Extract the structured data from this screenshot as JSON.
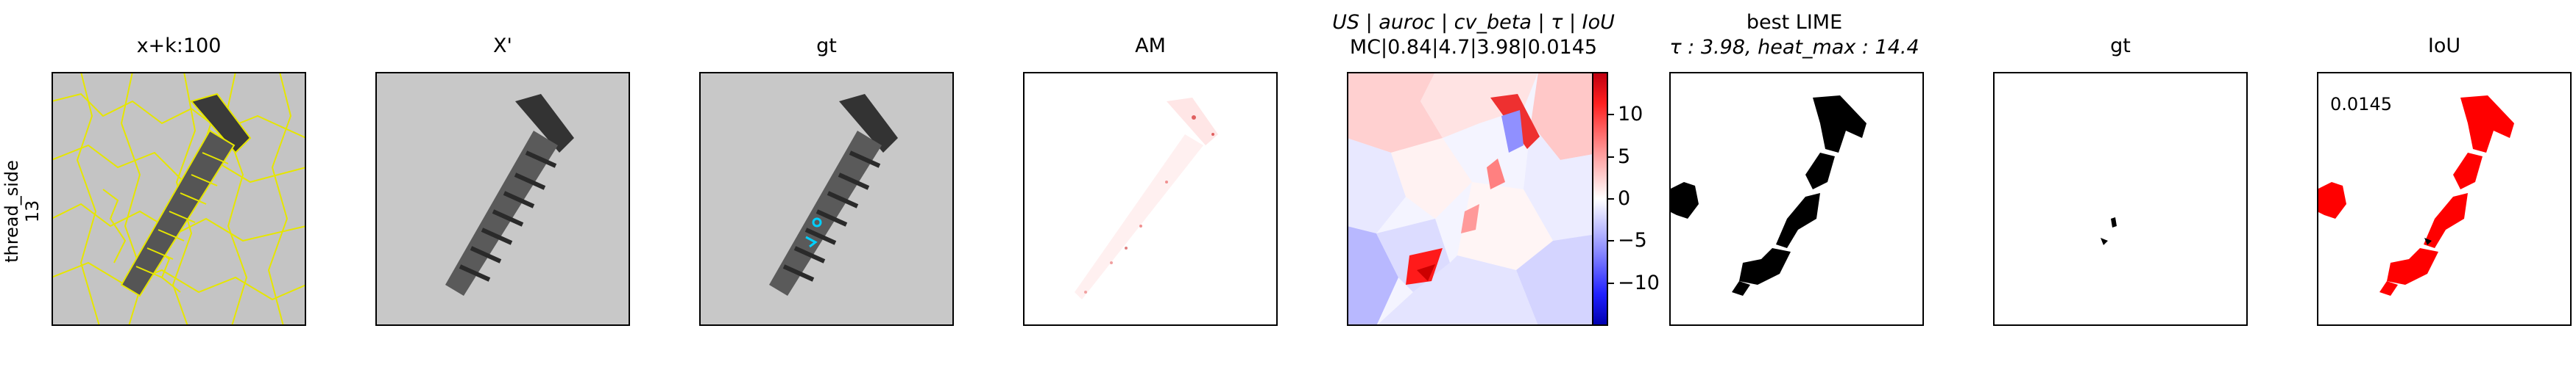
{
  "row_label": "thread_side\n13",
  "titles": {
    "p1": "x+k:100",
    "p2": "X'",
    "p3": "gt",
    "p4": "AM",
    "p5_line1": "US | auroc | cv_beta | τ | IoU",
    "p5_line2": "MC|0.84|4.7|3.98|0.0145",
    "p6_line1": "best LIME",
    "p6_line2": "τ : 3.98, heat_max : 14.4",
    "p7": "gt",
    "p8": "IoU"
  },
  "colorbar": {
    "ticks": [
      "10",
      "5",
      "0",
      "−5",
      "−10"
    ],
    "colors": {
      "positive": "#ff0000",
      "negative": "#0000ff",
      "zero": "#ffffff"
    }
  },
  "iou_value": "0.0145",
  "colors": {
    "segments": "#e6e600",
    "mask": "#000000",
    "iou_mask": "#ff0000",
    "markers": "#00d0ff"
  }
}
